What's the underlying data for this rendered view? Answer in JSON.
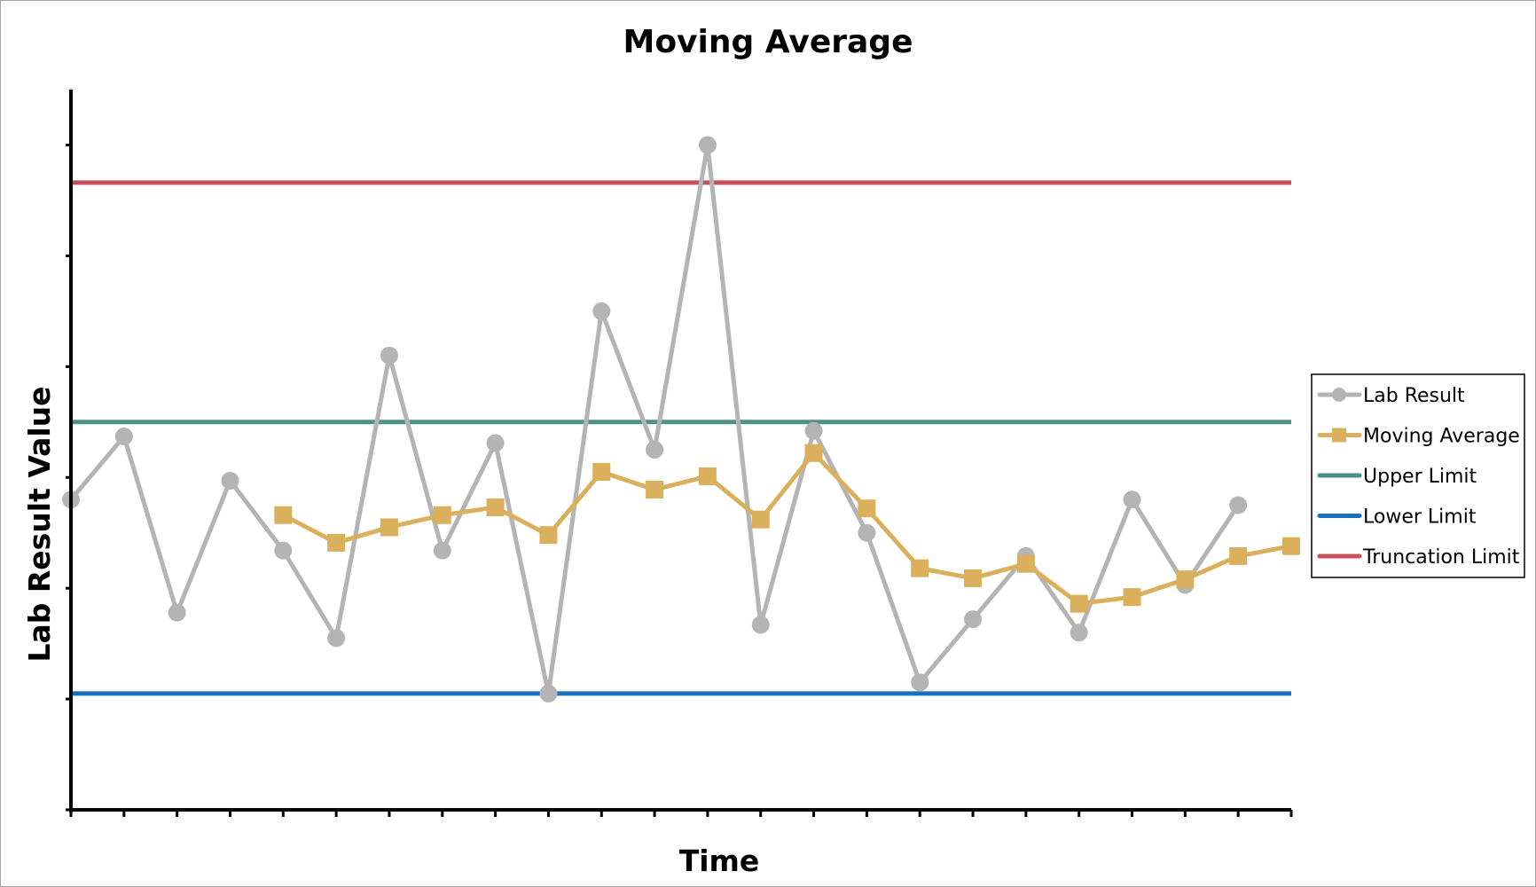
{
  "chart_data": {
    "type": "line",
    "title": "Moving Average",
    "xlabel": "Time",
    "ylabel": "Lab Result Value",
    "x": [
      1,
      2,
      3,
      4,
      5,
      6,
      7,
      8,
      9,
      10,
      11,
      12,
      13,
      14,
      15,
      16,
      17,
      18,
      19,
      20,
      21,
      22,
      23,
      24
    ],
    "xlim": [
      1,
      24
    ],
    "ylim": [
      0,
      6.5
    ],
    "tick_labels_shown": false,
    "grid": false,
    "legend_position": "right",
    "series": [
      {
        "name": "Lab Result",
        "color": "#b4b4b4",
        "marker": "circle",
        "x": [
          1,
          2,
          3,
          4,
          5,
          6,
          7,
          8,
          9,
          10,
          11,
          12,
          13,
          14,
          15,
          16,
          17,
          18,
          19,
          20,
          21,
          22,
          23
        ],
        "values": [
          2.8,
          3.37,
          1.78,
          2.97,
          2.34,
          1.55,
          4.1,
          2.34,
          3.31,
          1.05,
          4.5,
          3.25,
          6.0,
          1.67,
          3.42,
          2.5,
          1.15,
          1.72,
          2.29,
          1.6,
          2.8,
          2.03,
          2.75
        ]
      },
      {
        "name": "Moving Average",
        "color": "#dbb05c",
        "marker": "square",
        "x": [
          5,
          6,
          7,
          8,
          9,
          10,
          11,
          12,
          13,
          14,
          15,
          16,
          17,
          18,
          19,
          20,
          21,
          22,
          23,
          24
        ],
        "values": [
          2.66,
          2.41,
          2.55,
          2.66,
          2.73,
          2.48,
          3.05,
          2.89,
          3.01,
          2.62,
          3.22,
          2.72,
          2.18,
          2.09,
          2.22,
          1.86,
          1.92,
          2.08,
          2.29,
          2.38
        ]
      },
      {
        "name": "Upper Limit",
        "color": "#4e9187",
        "type": "hline",
        "value": 3.5
      },
      {
        "name": "Lower Limit",
        "color": "#1570be",
        "type": "hline",
        "value": 1.05
      },
      {
        "name": "Truncation Limit",
        "color": "#c84f5c",
        "type": "hline",
        "value": 5.66
      }
    ]
  }
}
